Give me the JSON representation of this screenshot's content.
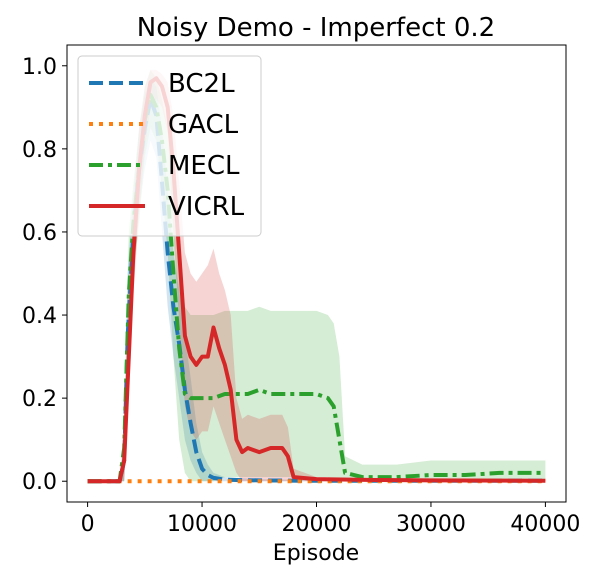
{
  "chart_data": {
    "type": "line",
    "title": "Noisy Demo - Imperfect 0.2",
    "xlabel": "Episode",
    "ylabel": "",
    "xlim": [
      -1800,
      41800
    ],
    "ylim": [
      -0.05,
      1.05
    ],
    "xticks": [
      0,
      10000,
      20000,
      30000,
      40000
    ],
    "yticks": [
      0.0,
      0.2,
      0.4,
      0.6,
      0.8,
      1.0
    ],
    "grid": false,
    "legend_position": "top-left",
    "series": [
      {
        "name": "BC2L",
        "color": "#1f77b4",
        "style": "dashed",
        "x": [
          0,
          2800,
          3200,
          3500,
          4000,
          4500,
          5000,
          5500,
          6000,
          6500,
          7000,
          7500,
          8000,
          8500,
          9000,
          9500,
          10000,
          10500,
          11000,
          12000,
          13000,
          15000,
          20000,
          25000,
          30000,
          40000
        ],
        "y": [
          0,
          0,
          0.05,
          0.35,
          0.6,
          0.75,
          0.85,
          0.92,
          0.88,
          0.72,
          0.55,
          0.42,
          0.33,
          0.22,
          0.14,
          0.07,
          0.03,
          0.015,
          0.008,
          0.004,
          0.003,
          0.002,
          0.001,
          0.001,
          0.001,
          0.001
        ],
        "band_low": [
          0,
          0,
          0,
          0.2,
          0.5,
          0.65,
          0.75,
          0.82,
          0.78,
          0.6,
          0.42,
          0.3,
          0.2,
          0.1,
          0.05,
          0.02,
          0.0,
          0.0,
          0.0,
          0.0,
          0.0,
          0.0,
          0.0,
          0.0,
          0.0,
          0.0
        ],
        "band_high": [
          0,
          0,
          0.1,
          0.5,
          0.7,
          0.85,
          0.93,
          0.97,
          0.95,
          0.85,
          0.7,
          0.55,
          0.46,
          0.35,
          0.25,
          0.14,
          0.07,
          0.04,
          0.02,
          0.01,
          0.008,
          0.005,
          0.003,
          0.003,
          0.003,
          0.003
        ]
      },
      {
        "name": "GACL",
        "color": "#ff7f0e",
        "style": "dotted",
        "x": [
          0,
          10000,
          20000,
          30000,
          40000
        ],
        "y": [
          0,
          0,
          0,
          0,
          0
        ]
      },
      {
        "name": "MECL",
        "color": "#2ca02c",
        "style": "dashdot",
        "x": [
          0,
          2800,
          3200,
          3600,
          4000,
          4500,
          5000,
          5500,
          6000,
          6500,
          7000,
          7500,
          8000,
          8500,
          9000,
          10000,
          11000,
          12000,
          13000,
          14000,
          15000,
          16000,
          17000,
          18000,
          19000,
          20000,
          21000,
          21500,
          22000,
          22500,
          24000,
          27000,
          30000,
          33000,
          36000,
          40000
        ],
        "y": [
          0,
          0,
          0.08,
          0.45,
          0.62,
          0.75,
          0.87,
          0.93,
          0.9,
          0.82,
          0.7,
          0.5,
          0.32,
          0.21,
          0.2,
          0.2,
          0.2,
          0.21,
          0.21,
          0.21,
          0.22,
          0.21,
          0.21,
          0.21,
          0.21,
          0.21,
          0.2,
          0.18,
          0.1,
          0.02,
          0.01,
          0.01,
          0.015,
          0.015,
          0.02,
          0.02
        ],
        "band_low": [
          0,
          0,
          0,
          0.3,
          0.5,
          0.62,
          0.78,
          0.85,
          0.82,
          0.7,
          0.55,
          0.3,
          0.1,
          0.02,
          0.0,
          0.0,
          0.0,
          0.01,
          0.01,
          0.01,
          0.01,
          0.01,
          0.01,
          0.01,
          0.01,
          0.01,
          0.01,
          0.0,
          0.0,
          0.0,
          0.0,
          0.0,
          0.0,
          0.0,
          0.0,
          0.0
        ],
        "band_high": [
          0,
          0,
          0.15,
          0.6,
          0.72,
          0.85,
          0.95,
          0.99,
          0.97,
          0.92,
          0.85,
          0.7,
          0.55,
          0.42,
          0.4,
          0.4,
          0.4,
          0.41,
          0.41,
          0.41,
          0.42,
          0.41,
          0.41,
          0.41,
          0.41,
          0.41,
          0.4,
          0.38,
          0.3,
          0.06,
          0.04,
          0.04,
          0.05,
          0.05,
          0.05,
          0.05
        ]
      },
      {
        "name": "VICRL",
        "color": "#d62728",
        "style": "solid",
        "x": [
          0,
          2800,
          3200,
          3600,
          4000,
          4500,
          5000,
          5500,
          6000,
          6500,
          7000,
          7500,
          8000,
          8500,
          9000,
          9500,
          10000,
          10500,
          11000,
          11500,
          12000,
          12500,
          13000,
          13500,
          14000,
          15000,
          16000,
          17000,
          17500,
          18000,
          20000,
          25000,
          30000,
          40000
        ],
        "y": [
          0,
          0,
          0.05,
          0.3,
          0.55,
          0.75,
          0.88,
          0.96,
          0.97,
          0.95,
          0.9,
          0.75,
          0.55,
          0.35,
          0.3,
          0.28,
          0.3,
          0.3,
          0.37,
          0.32,
          0.28,
          0.22,
          0.1,
          0.07,
          0.08,
          0.07,
          0.08,
          0.08,
          0.06,
          0.01,
          0.005,
          0.003,
          0.002,
          0.001
        ],
        "band_low": [
          0,
          0,
          0,
          0.2,
          0.45,
          0.65,
          0.8,
          0.9,
          0.92,
          0.9,
          0.84,
          0.6,
          0.38,
          0.18,
          0.12,
          0.1,
          0.12,
          0.12,
          0.18,
          0.14,
          0.1,
          0.06,
          0.02,
          0.0,
          0.0,
          0.0,
          0.0,
          0.0,
          0.0,
          0.0,
          0.0,
          0.0,
          0.0,
          0.0
        ],
        "band_high": [
          0,
          0,
          0.1,
          0.42,
          0.66,
          0.85,
          0.95,
          0.99,
          0.99,
          0.98,
          0.96,
          0.88,
          0.72,
          0.55,
          0.5,
          0.48,
          0.5,
          0.52,
          0.56,
          0.5,
          0.46,
          0.4,
          0.2,
          0.15,
          0.16,
          0.15,
          0.16,
          0.16,
          0.13,
          0.03,
          0.01,
          0.006,
          0.004,
          0.003
        ]
      }
    ]
  }
}
